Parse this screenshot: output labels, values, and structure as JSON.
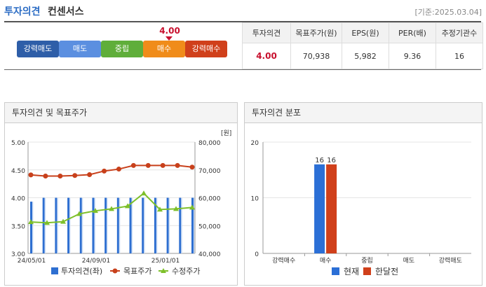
{
  "header": {
    "title_a": "투자의견",
    "title_b": "컨센서스",
    "date": "[기준:2025.03.04]"
  },
  "scale": {
    "labels": [
      "강력매도",
      "매도",
      "중립",
      "매수",
      "강력매수"
    ],
    "colors": [
      "#2e5ea8",
      "#5b8fe0",
      "#5fae3a",
      "#f08c1a",
      "#d0401b"
    ],
    "current": "4.00"
  },
  "table": {
    "headers": [
      "투자의견",
      "목표주가(원)",
      "EPS(원)",
      "PER(배)",
      "추정기관수"
    ],
    "values": [
      "4.00",
      "70,938",
      "5,982",
      "9.36",
      "16"
    ]
  },
  "panel_left": {
    "title": "투자의견 및 목표주가",
    "legend": [
      "투자의견(좌)",
      "목표주가",
      "수정주가"
    ]
  },
  "panel_right": {
    "title": "투자의견 분포",
    "legend": [
      "현재",
      "한달전"
    ]
  },
  "chart_data": [
    {
      "type": "bar+line",
      "unit_right": "[원]",
      "x_tick_labels": [
        "24/05/01",
        "24/09/01",
        "25/01/01"
      ],
      "y_left": {
        "lim": [
          3.0,
          5.0
        ],
        "ticks": [
          "5.00",
          "4.50",
          "4.00",
          "3.50",
          "3.00"
        ]
      },
      "y_right": {
        "lim": [
          40000,
          80000
        ],
        "ticks": [
          "80,000",
          "70,000",
          "60,000",
          "50,000",
          "40,000"
        ]
      },
      "series": [
        {
          "name": "투자의견(좌)",
          "type": "bar",
          "color": "#2e6fd1",
          "values": [
            3.93,
            4.0,
            4.0,
            4.0,
            4.0,
            4.0,
            4.0,
            4.0,
            4.0,
            4.0,
            4.0,
            4.0,
            4.0,
            4.0
          ]
        },
        {
          "name": "목표주가",
          "type": "line",
          "color": "#c8401b",
          "values": [
            68200,
            67800,
            67800,
            68000,
            68300,
            69600,
            70300,
            71600,
            71600,
            71600,
            71600,
            71000
          ]
        },
        {
          "name": "수정주가",
          "type": "line",
          "color": "#7ec02a",
          "values": [
            51300,
            51000,
            51400,
            54200,
            55300,
            56000,
            57000,
            61600,
            55800,
            56000,
            56500
          ]
        }
      ]
    },
    {
      "type": "bar",
      "categories": [
        "강력매수",
        "매수",
        "중립",
        "매도",
        "강력매도"
      ],
      "ylim": [
        0,
        20
      ],
      "y_ticks": [
        "20",
        "10",
        "0"
      ],
      "series": [
        {
          "name": "현재",
          "color": "#2b6fd6",
          "values": [
            0,
            16,
            0,
            0,
            0
          ]
        },
        {
          "name": "한달전",
          "color": "#d0401b",
          "values": [
            0,
            16,
            0,
            0,
            0
          ]
        }
      ]
    }
  ]
}
